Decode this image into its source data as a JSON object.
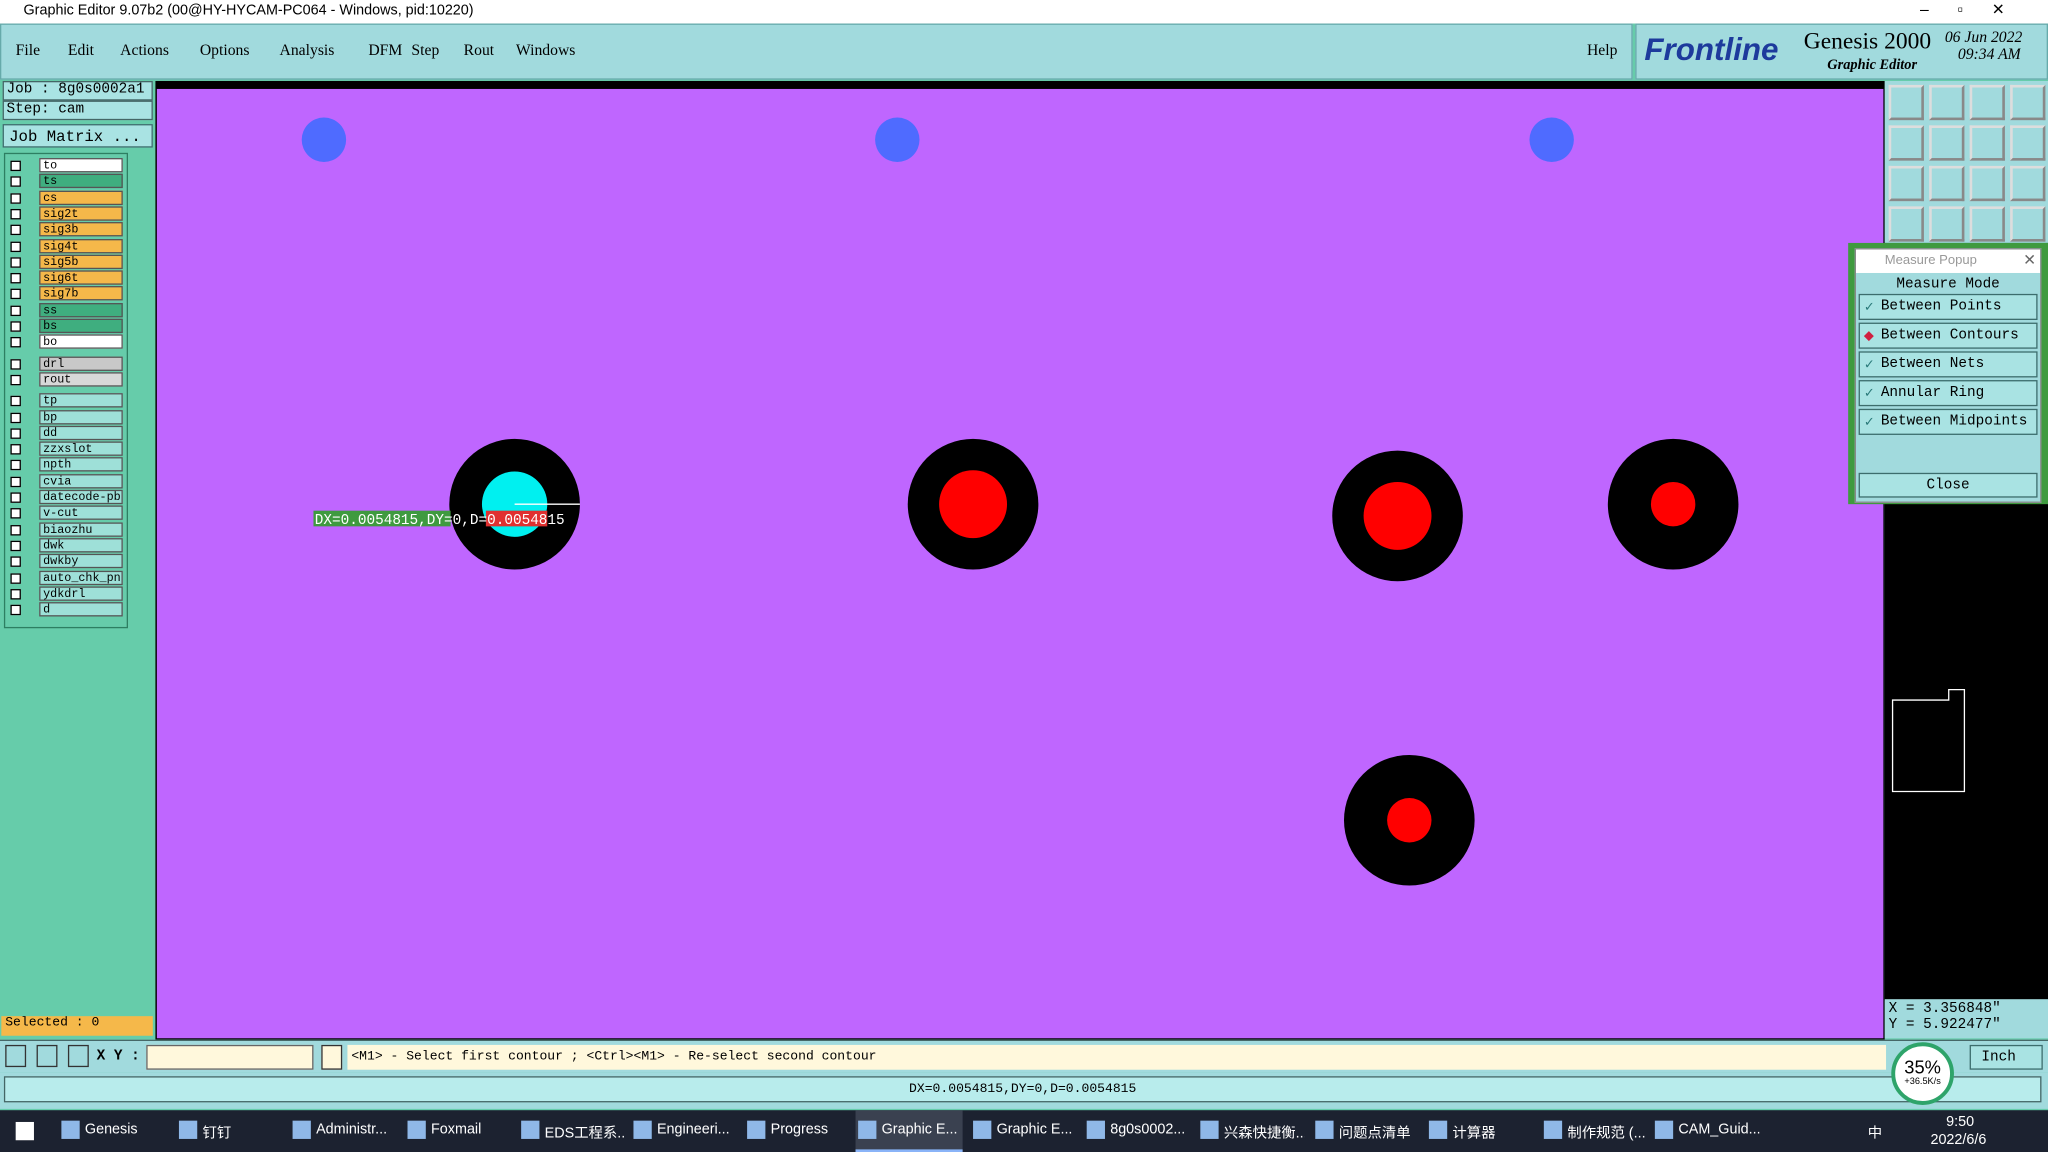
{
  "window": {
    "title": "Graphic Editor 9.07b2 (00@HY-HYCAM-PC064 - Windows, pid:10220)"
  },
  "menu": [
    "File",
    "Edit",
    "Actions",
    "Options",
    "Analysis",
    "DFM",
    "Step",
    "Rout",
    "Windows"
  ],
  "help": "Help",
  "brand": {
    "logo": "Frontline",
    "product": "Genesis 2000",
    "subtitle": "Graphic Editor",
    "date": "06 Jun 2022",
    "time": "09:34 AM"
  },
  "job": {
    "job": "Job : 8g0s0002a1",
    "step": "Step: cam",
    "matrix": "Job Matrix ..."
  },
  "board_layers": [
    {
      "name": "to",
      "color": "#ffffff"
    },
    {
      "name": "ts",
      "color": "#3fae7f"
    },
    {
      "name": "cs",
      "color": "#f5b84a"
    },
    {
      "name": "sig2t",
      "color": "#f5b84a"
    },
    {
      "name": "sig3b",
      "color": "#f5b84a"
    },
    {
      "name": "sig4t",
      "color": "#f5b84a"
    },
    {
      "name": "sig5b",
      "color": "#f5b84a"
    },
    {
      "name": "sig6t",
      "color": "#f5b84a"
    },
    {
      "name": "sig7b",
      "color": "#f5b84a"
    },
    {
      "name": "ss",
      "color": "#3fae7f"
    },
    {
      "name": "bs",
      "color": "#3fae7f"
    },
    {
      "name": "bo",
      "color": "#ffffff"
    }
  ],
  "drill_layers": [
    {
      "name": "drl",
      "color": "#c8c8c8"
    },
    {
      "name": "rout",
      "color": "#d8d8d8"
    }
  ],
  "misc_layers": [
    {
      "name": "tp",
      "color": "#9ee0d8"
    },
    {
      "name": "bp",
      "color": "#9ee0d8"
    },
    {
      "name": "dd",
      "color": "#9ee0d8"
    },
    {
      "name": "zzxslot",
      "color": "#9ee0d8"
    },
    {
      "name": "npth",
      "color": "#9ee0d8"
    },
    {
      "name": "cvia",
      "color": "#9ee0d8"
    },
    {
      "name": "datecode-pb",
      "color": "#9ee0d8"
    },
    {
      "name": "v-cut",
      "color": "#9ee0d8"
    },
    {
      "name": "biaozhu",
      "color": "#9ee0d8"
    },
    {
      "name": "dwk",
      "color": "#9ee0d8"
    },
    {
      "name": "dwkby",
      "color": "#9ee0d8"
    },
    {
      "name": "auto_chk_pn",
      "color": "#9ee0d8"
    },
    {
      "name": "ydkdrl",
      "color": "#9ee0d8"
    },
    {
      "name": "d",
      "color": "#9ee0d8"
    }
  ],
  "selected": "Selected : 0",
  "canvas": {
    "measure_label": "DX=0.0054815,DY=0,D=0.0054815"
  },
  "measure_popup": {
    "title": "Measure Popup",
    "heading": "Measure Mode",
    "modes": [
      {
        "label": "Between Points",
        "selected": false
      },
      {
        "label": "Between Contours",
        "selected": true
      },
      {
        "label": "Between Nets",
        "selected": false
      },
      {
        "label": "Annular Ring",
        "selected": false
      },
      {
        "label": "Between Midpoints",
        "selected": false
      }
    ],
    "close": "Close"
  },
  "coords": {
    "x": "X = 3.356848\"",
    "y": "Y = 5.922477\""
  },
  "command": {
    "xy_label": "X Y :",
    "prompt": "<M1> - Select first contour ; <Ctrl><M1> - Re-select second contour",
    "units": "Inch"
  },
  "status": "DX=0.0054815,DY=0,D=0.0054815",
  "network": {
    "percent": "35%",
    "speed": "+36.5K/s"
  },
  "taskbar": {
    "apps": [
      "Genesis",
      "钉钉",
      "Administr...",
      "Foxmail",
      "EDS工程系...",
      "Engineeri...",
      "Progress",
      "Graphic E...",
      "Graphic E...",
      "8g0s0002...",
      "兴森快捷衡...",
      "问题点清单",
      "计算器",
      "制作规范 (...",
      "CAM_Guid..."
    ],
    "ime": "中",
    "time": "9:50",
    "date": "2022/6/6"
  }
}
